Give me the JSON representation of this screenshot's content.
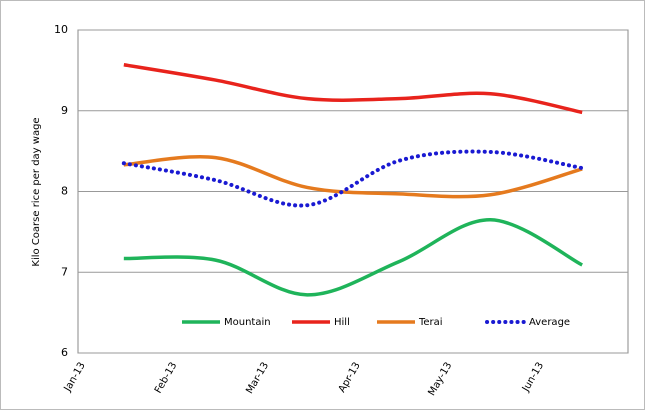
{
  "chart_data": {
    "type": "line",
    "y_label": "Kilo Coarse rice per day wage",
    "categories": [
      "Jan-13",
      "Feb-13",
      "Mar-13",
      "Apr-13",
      "May-13",
      "Jun-13"
    ],
    "series": [
      {
        "name": "Mountain",
        "color": "#1fb45a",
        "style": "solid",
        "values": [
          7.17,
          7.15,
          6.72,
          7.13,
          7.65,
          7.09
        ]
      },
      {
        "name": "Hill",
        "color": "#e8231c",
        "style": "solid",
        "values": [
          9.57,
          9.38,
          9.15,
          9.15,
          9.21,
          8.98
        ]
      },
      {
        "name": "Terai",
        "color": "#e57a1e",
        "style": "solid",
        "values": [
          8.33,
          8.42,
          8.05,
          7.97,
          7.96,
          8.28
        ]
      },
      {
        "name": "Average",
        "color": "#1a1ad2",
        "style": "dotted",
        "values": [
          8.35,
          8.14,
          7.83,
          8.38,
          8.49,
          8.29
        ]
      }
    ],
    "ylim": [
      6,
      10
    ],
    "yticks": [
      6,
      7,
      8,
      9,
      10
    ],
    "grid": true,
    "smooth": true,
    "legend": "bottom"
  }
}
